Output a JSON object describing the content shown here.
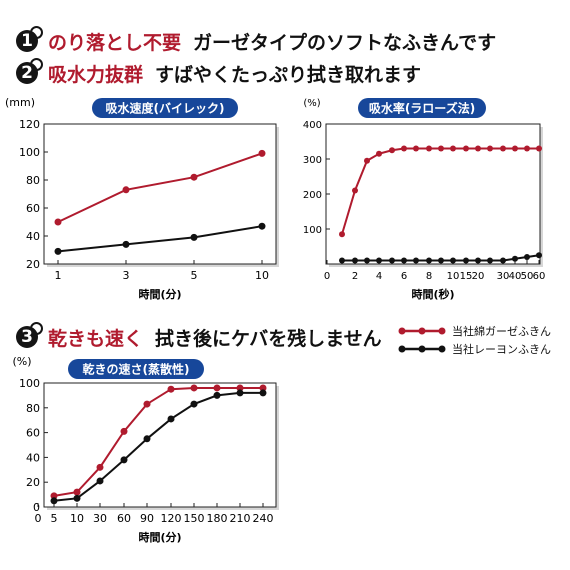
{
  "features": [
    {
      "number": "1",
      "headline": "のり落とし不要",
      "description": "ガーゼタイプのソフトなふきんです"
    },
    {
      "number": "2",
      "headline": "吸水力抜群",
      "description": "すばやくたっぷり拭き取れます"
    },
    {
      "number": "3",
      "headline": "乾きも速く",
      "description": "拭き後にケバを残しません"
    }
  ],
  "legend": [
    {
      "label": "当社綿ガーゼふきん",
      "color": "#b01b2e"
    },
    {
      "label": "当社レーヨンふきん",
      "color": "#111111"
    }
  ],
  "chart_data": [
    {
      "type": "line",
      "title": "吸水速度(バイレック)",
      "unit": "(mm)",
      "xlabel": "時間(分)",
      "ylabel": "",
      "x": [
        "1",
        "3",
        "5",
        "10"
      ],
      "yticks": [
        "20",
        "40",
        "60",
        "80",
        "100",
        "120"
      ],
      "ylim": [
        20,
        120
      ],
      "grid": false,
      "series": [
        {
          "name": "当社綿ガーゼふきん",
          "color": "#b01b2e",
          "values": [
            50,
            73,
            82,
            99
          ]
        },
        {
          "name": "当社レーヨンふきん",
          "color": "#111111",
          "values": [
            29,
            34,
            39,
            47
          ]
        }
      ]
    },
    {
      "type": "line",
      "title": "吸水率(ラローズ法)",
      "unit": "(%)",
      "xlabel": "時間(秒)",
      "ylabel": "",
      "x": [
        "1",
        "2",
        "3",
        "4",
        "5",
        "6",
        "7",
        "8",
        "9",
        "10",
        "15",
        "20",
        "25",
        "30",
        "40",
        "50",
        "60"
      ],
      "xtick_labels": [
        "0",
        "2",
        "4",
        "6",
        "8",
        "10",
        "15",
        "20",
        "30",
        "40",
        "50",
        "60"
      ],
      "yticks": [
        "100",
        "200",
        "300",
        "400"
      ],
      "ylim": [
        0,
        400
      ],
      "grid": false,
      "series": [
        {
          "name": "当社綿ガーゼふきん",
          "color": "#b01b2e",
          "values": [
            85,
            210,
            295,
            315,
            325,
            330,
            330,
            330,
            330,
            330,
            330,
            330,
            330,
            330,
            330,
            330,
            330
          ]
        },
        {
          "name": "当社レーヨンふきん",
          "color": "#111111",
          "values": [
            10,
            10,
            10,
            10,
            10,
            10,
            10,
            10,
            10,
            10,
            10,
            10,
            10,
            10,
            15,
            20,
            25
          ]
        }
      ]
    },
    {
      "type": "line",
      "title": "乾きの速さ(蒸散性)",
      "unit": "(%)",
      "xlabel": "時間(分)",
      "ylabel": "",
      "x": [
        "5",
        "10",
        "30",
        "60",
        "90",
        "120",
        "150",
        "180",
        "210",
        "240"
      ],
      "xtick_labels": [
        "0",
        "5",
        "10",
        "30",
        "60",
        "90",
        "120",
        "150",
        "180",
        "210",
        "240"
      ],
      "yticks": [
        "0",
        "20",
        "40",
        "60",
        "80",
        "100"
      ],
      "ylim": [
        0,
        100
      ],
      "grid": false,
      "series": [
        {
          "name": "当社綿ガーゼふきん",
          "color": "#b01b2e",
          "values": [
            9,
            12,
            32,
            61,
            83,
            95,
            96,
            96,
            96,
            96
          ]
        },
        {
          "name": "当社レーヨンふきん",
          "color": "#111111",
          "values": [
            5,
            7,
            21,
            38,
            55,
            71,
            83,
            90,
            92,
            92
          ]
        }
      ]
    }
  ]
}
